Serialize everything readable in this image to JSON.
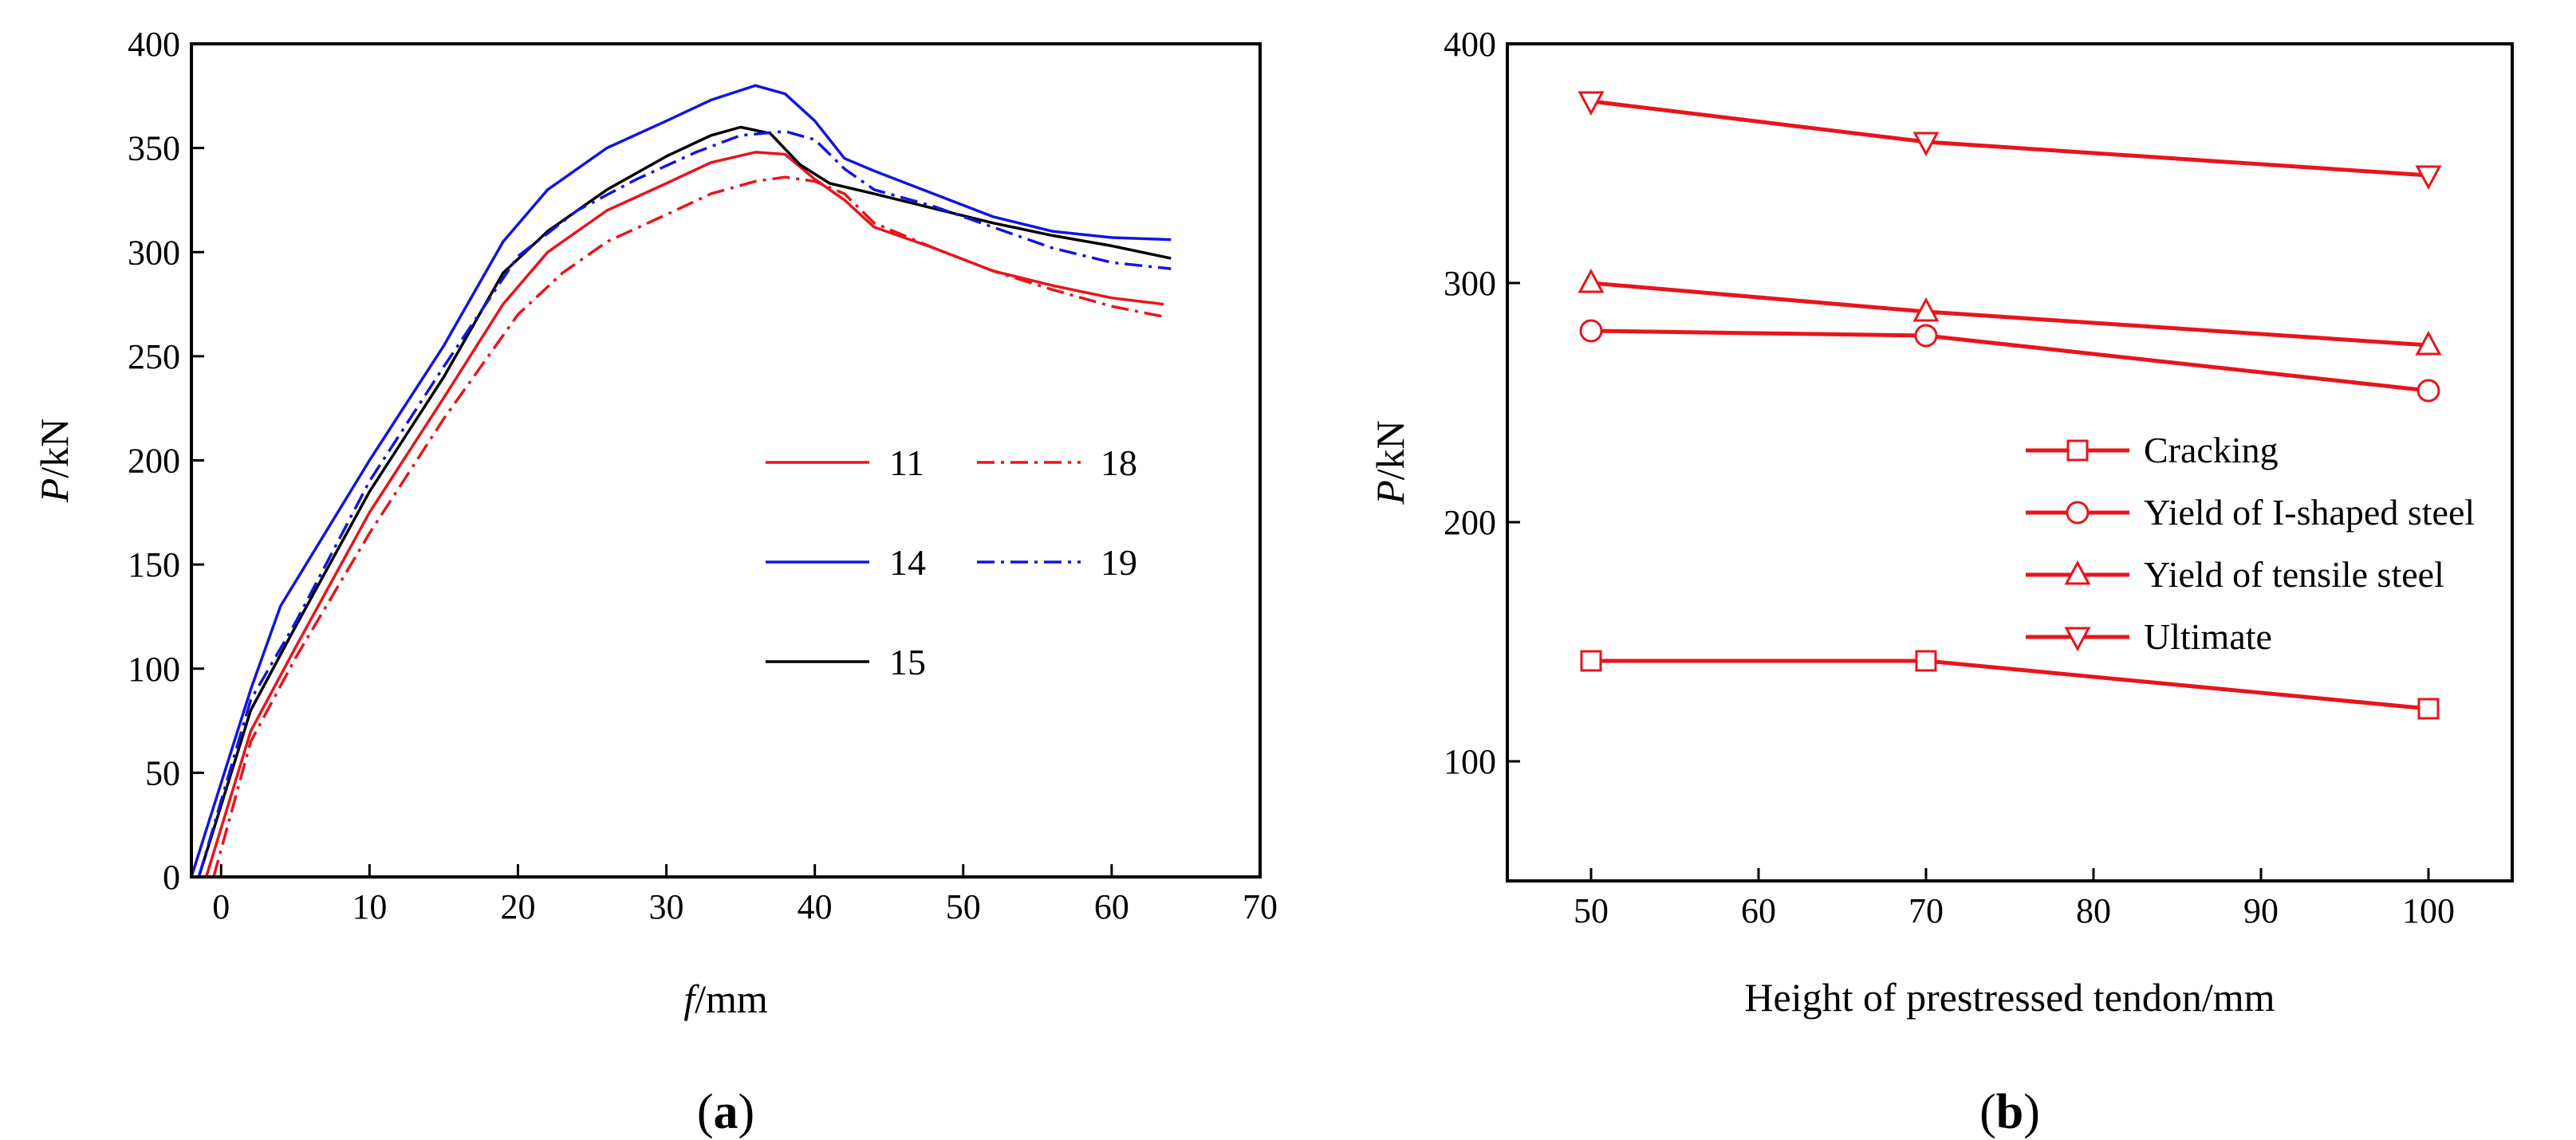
{
  "chart_data": [
    {
      "panel_label": "(a)",
      "type": "line",
      "xlabel_var": "f",
      "xlabel_unit": "/mm",
      "ylabel_var": "P",
      "ylabel_unit": "/kN",
      "xlim": [
        -2,
        70
      ],
      "ylim": [
        0,
        400
      ],
      "xticks": [
        0,
        10,
        20,
        30,
        40,
        50,
        60,
        70
      ],
      "yticks": [
        0,
        50,
        100,
        150,
        200,
        250,
        300,
        350,
        400
      ],
      "legend_position": "center-right",
      "series": [
        {
          "name": "11",
          "color": "#e8141c",
          "style": "solid",
          "x": [
            -1,
            2,
            5,
            10,
            15,
            19,
            22,
            26,
            30,
            33,
            36,
            38,
            40,
            42,
            44,
            48,
            52,
            56,
            60,
            63.5
          ],
          "y": [
            0,
            70,
            110,
            175,
            230,
            275,
            300,
            320,
            333,
            343,
            348,
            347,
            335,
            325,
            312,
            302,
            291,
            284,
            278,
            275
          ]
        },
        {
          "name": "14",
          "color": "#1414e0",
          "style": "solid",
          "x": [
            -2,
            2,
            4,
            10,
            15,
            19,
            22,
            26,
            30,
            33,
            36,
            38,
            40,
            42,
            44,
            48,
            52,
            56,
            60,
            64
          ],
          "y": [
            0,
            90,
            130,
            200,
            255,
            305,
            330,
            350,
            363,
            373,
            380,
            376,
            363,
            345,
            339,
            328,
            317,
            310,
            307,
            306
          ]
        },
        {
          "name": "15",
          "color": "#000000",
          "style": "solid",
          "x": [
            -1.5,
            2,
            5,
            10,
            15,
            19,
            22,
            26,
            30,
            33,
            35,
            37,
            39,
            41,
            44,
            48,
            52,
            56,
            60,
            64
          ],
          "y": [
            0,
            80,
            120,
            185,
            240,
            290,
            310,
            330,
            346,
            356,
            360,
            357,
            342,
            333,
            328,
            321,
            314,
            308,
            303,
            297
          ]
        },
        {
          "name": "18",
          "color": "#e8141c",
          "style": "dashdot",
          "x": [
            -0.5,
            2,
            5,
            10,
            15,
            20,
            23,
            26,
            30,
            33,
            36,
            38,
            40,
            42,
            44,
            48,
            52,
            56,
            60,
            63.5
          ],
          "y": [
            0,
            65,
            105,
            165,
            220,
            270,
            290,
            305,
            318,
            328,
            334,
            336,
            334,
            328,
            314,
            302,
            291,
            282,
            274,
            269
          ]
        },
        {
          "name": "19",
          "color": "#1414e0",
          "style": "dashdot",
          "x": [
            -1.5,
            2,
            5,
            10,
            15,
            20,
            24,
            28,
            32,
            35,
            38,
            40,
            42,
            44,
            48,
            52,
            56,
            60,
            64
          ],
          "y": [
            0,
            85,
            122,
            190,
            245,
            298,
            320,
            335,
            348,
            356,
            358,
            354,
            340,
            330,
            322,
            312,
            302,
            295,
            292
          ]
        }
      ]
    },
    {
      "panel_label": "(b)",
      "type": "line",
      "xlabel": "Height of prestressed tendon/mm",
      "ylabel_var": "P",
      "ylabel_unit": "/kN",
      "xlim": [
        45,
        105
      ],
      "ylim": [
        50,
        400
      ],
      "xticks": [
        50,
        60,
        70,
        80,
        90,
        100
      ],
      "yticks": [
        100,
        200,
        300,
        400
      ],
      "legend_position": "center-right",
      "series": [
        {
          "name": "Cracking",
          "marker": "square",
          "color": "#e8141c",
          "x": [
            50,
            70,
            100
          ],
          "y": [
            142,
            142,
            122
          ]
        },
        {
          "name": "Yield of I-shaped steel",
          "marker": "circle",
          "color": "#e8141c",
          "x": [
            50,
            70,
            100
          ],
          "y": [
            280,
            278,
            255
          ]
        },
        {
          "name": "Yield of tensile steel",
          "marker": "triangle-up",
          "color": "#e8141c",
          "x": [
            50,
            70,
            100
          ],
          "y": [
            300,
            288,
            274
          ]
        },
        {
          "name": "Ultimate",
          "marker": "triangle-down",
          "color": "#e8141c",
          "x": [
            50,
            70,
            100
          ],
          "y": [
            376,
            359,
            345
          ]
        }
      ]
    }
  ]
}
